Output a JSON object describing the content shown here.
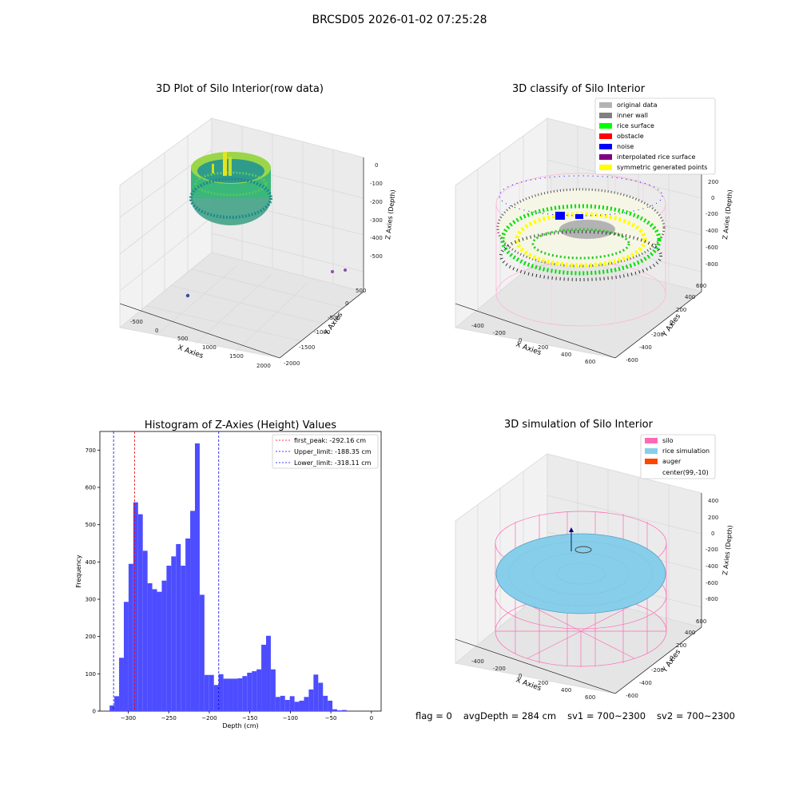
{
  "suptitle": "BRCSD05 2026-01-02 07:25:28",
  "panel1": {
    "title": "3D Plot of Silo Interior(row data)",
    "xlabel": "X Axies",
    "ylabel": "Y Axies",
    "zlabel": "Z Axies (Depth)",
    "xticks": [
      "-500",
      "0",
      "500",
      "1000",
      "1500",
      "2000"
    ],
    "yticks": [
      "-2000",
      "-1500",
      "-1000",
      "-500",
      "0",
      "500"
    ],
    "zticks": [
      "0",
      "-100",
      "-200",
      "-300",
      "-400",
      "-500"
    ],
    "colormap": "viridis"
  },
  "panel2": {
    "title": "3D classify of Silo Interior",
    "xlabel": "X Axies",
    "ylabel": "Y Axies",
    "zlabel": "Z Axies (Depth)",
    "xticks": [
      "-400",
      "-200",
      "0",
      "200",
      "400",
      "600"
    ],
    "yticks": [
      "-600",
      "-400",
      "-200",
      "0",
      "200",
      "400",
      "600"
    ],
    "zticks": [
      "200",
      "0",
      "-200",
      "-400",
      "-600",
      "-800"
    ],
    "legend": [
      {
        "label": "original data",
        "color": "#b3b3b3"
      },
      {
        "label": "inner wall",
        "color": "#808080"
      },
      {
        "label": "rice surface",
        "color": "#00ff00"
      },
      {
        "label": "obstacle",
        "color": "#ff0000"
      },
      {
        "label": "noise",
        "color": "#0000ff"
      },
      {
        "label": "interpolated rice surface",
        "color": "#800080"
      },
      {
        "label": "symmetric generated points",
        "color": "#ffff00"
      }
    ]
  },
  "panel4": {
    "title": "3D simulation of Silo Interior",
    "xlabel": "X Axies",
    "ylabel": "Y Axies",
    "zlabel": "Z Axies (Depth)",
    "xticks": [
      "-400",
      "-200",
      "0",
      "200",
      "400",
      "600"
    ],
    "yticks": [
      "-600",
      "-400",
      "-200",
      "0",
      "200",
      "400",
      "600"
    ],
    "zticks": [
      "400",
      "200",
      "0",
      "-200",
      "-400",
      "-600",
      "-800"
    ],
    "legend": [
      {
        "label": "silo",
        "color": "#ff69b4"
      },
      {
        "label": "rice simulation",
        "color": "#87ceeb"
      },
      {
        "label": "auger",
        "color": "#ff4500"
      },
      {
        "label": "center(99,-10)",
        "color": "none"
      }
    ]
  },
  "footer": {
    "flag": "flag = 0",
    "avg": "avgDepth = 284 cm",
    "sv1": "sv1 = 700~2300",
    "sv2": "sv2 = 700~2300"
  },
  "chart_data": [
    {
      "type": "bar",
      "title": "Histogram of Z-Axies (Height) Values",
      "xlabel": "Depth (cm)",
      "ylabel": "Frequency",
      "xlim": [
        -335,
        12
      ],
      "ylim": [
        0,
        750
      ],
      "xticks": [
        -300,
        -250,
        -200,
        -150,
        -100,
        -50,
        0
      ],
      "yticks": [
        0,
        100,
        200,
        300,
        400,
        500,
        600,
        700
      ],
      "bar_color": "#4d4dff",
      "bins_start": -323,
      "bin_width": 5.85,
      "values": [
        15,
        40,
        143,
        293,
        395,
        560,
        528,
        430,
        343,
        327,
        320,
        350,
        390,
        415,
        448,
        390,
        463,
        537,
        718,
        312,
        97,
        97,
        70,
        99,
        87,
        87,
        87,
        88,
        94,
        103,
        107,
        112,
        178,
        202,
        112,
        38,
        41,
        30,
        40,
        25,
        28,
        38,
        58,
        98,
        76,
        41,
        28,
        5,
        2,
        3
      ],
      "vlines": [
        {
          "x": -292.16,
          "color": "#ff0000",
          "label": "first_peak: -292.16 cm"
        },
        {
          "x": -188.35,
          "color": "#0000ff",
          "label": "Upper_limit: -188.35 cm"
        },
        {
          "x": -318.11,
          "color": "#0000ff",
          "label": "Lower_limit: -318.11 cm"
        }
      ],
      "legend_position": "top-right"
    }
  ]
}
